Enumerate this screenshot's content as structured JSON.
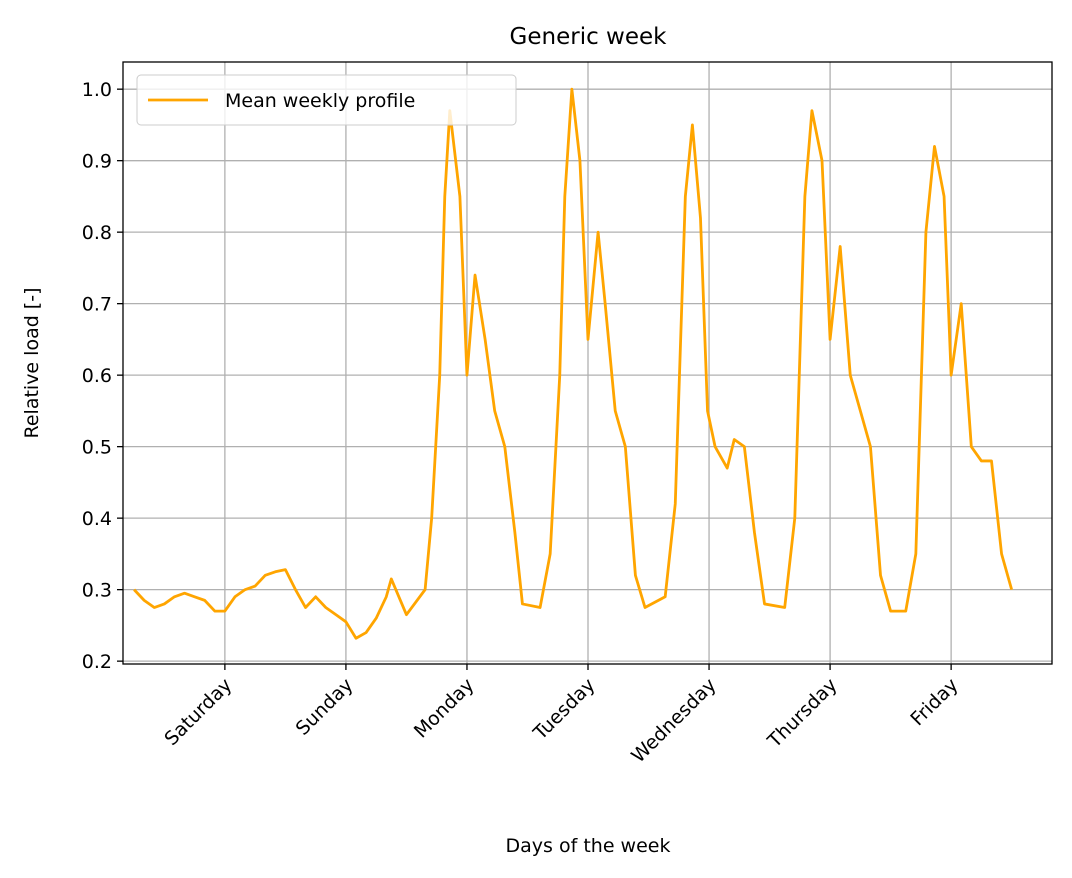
{
  "chart_data": {
    "type": "line",
    "title": "Generic week",
    "xlabel": "Days of the week",
    "ylabel": "Relative load [-]",
    "x": [
      6,
      8,
      10,
      12,
      14,
      16,
      18,
      20,
      22,
      24,
      26,
      28,
      30,
      32,
      34,
      36,
      38,
      40,
      42,
      44,
      46,
      48,
      50,
      52,
      54,
      56,
      57,
      60,
      63.7,
      65,
      66.6,
      67.6,
      68.6,
      70.6,
      72,
      73.6,
      75.6,
      77.5,
      79.5,
      81.5,
      83,
      86.5,
      88.5,
      90.4,
      91.4,
      92.8,
      94.4,
      96,
      98,
      99.4,
      101.4,
      103.4,
      105.4,
      107.3,
      111.3,
      113.3,
      115.3,
      116.7,
      118.3,
      119.7,
      121.2,
      123.6,
      125,
      127,
      129,
      131,
      135,
      137,
      139,
      140.4,
      142.4,
      144,
      146,
      148,
      150,
      152,
      154,
      156,
      159,
      161,
      163,
      164.7,
      166.6,
      168,
      170,
      172,
      174,
      176,
      178,
      180
    ],
    "series": [
      {
        "name": "Mean weekly profile",
        "color": "#ffa500",
        "values": [
          0.3,
          0.285,
          0.275,
          0.28,
          0.29,
          0.295,
          0.29,
          0.285,
          0.27,
          0.27,
          0.29,
          0.3,
          0.305,
          0.32,
          0.325,
          0.328,
          0.3,
          0.275,
          0.29,
          0.275,
          0.265,
          0.255,
          0.232,
          0.24,
          0.26,
          0.29,
          0.315,
          0.265,
          0.3,
          0.4,
          0.6,
          0.85,
          0.97,
          0.85,
          0.6,
          0.74,
          0.65,
          0.55,
          0.5,
          0.38,
          0.28,
          0.275,
          0.35,
          0.6,
          0.85,
          1.0,
          0.9,
          0.65,
          0.8,
          0.7,
          0.55,
          0.5,
          0.32,
          0.275,
          0.29,
          0.42,
          0.85,
          0.95,
          0.82,
          0.55,
          0.5,
          0.47,
          0.51,
          0.5,
          0.38,
          0.28,
          0.275,
          0.4,
          0.85,
          0.97,
          0.9,
          0.65,
          0.78,
          0.6,
          0.55,
          0.5,
          0.32,
          0.27,
          0.27,
          0.35,
          0.8,
          0.92,
          0.85,
          0.6,
          0.7,
          0.5,
          0.48,
          0.48,
          0.35,
          0.3
        ]
      }
    ],
    "xlim": [
      3.8,
      188
    ],
    "xticks": [
      {
        "value": 24,
        "label": "Saturday"
      },
      {
        "value": 48,
        "label": "Sunday"
      },
      {
        "value": 72,
        "label": "Monday"
      },
      {
        "value": 96,
        "label": "Tuesday"
      },
      {
        "value": 120,
        "label": "Wednesday"
      },
      {
        "value": 144,
        "label": "Thursday"
      },
      {
        "value": 168,
        "label": "Friday"
      }
    ],
    "ylim": [
      0.196,
      1.038
    ],
    "yticks": [
      0.2,
      0.3,
      0.4,
      0.5,
      0.6,
      0.7,
      0.8,
      0.9,
      {
        "value": 1,
        "label": "1.0"
      }
    ],
    "grid": true,
    "legend": "upper left"
  }
}
